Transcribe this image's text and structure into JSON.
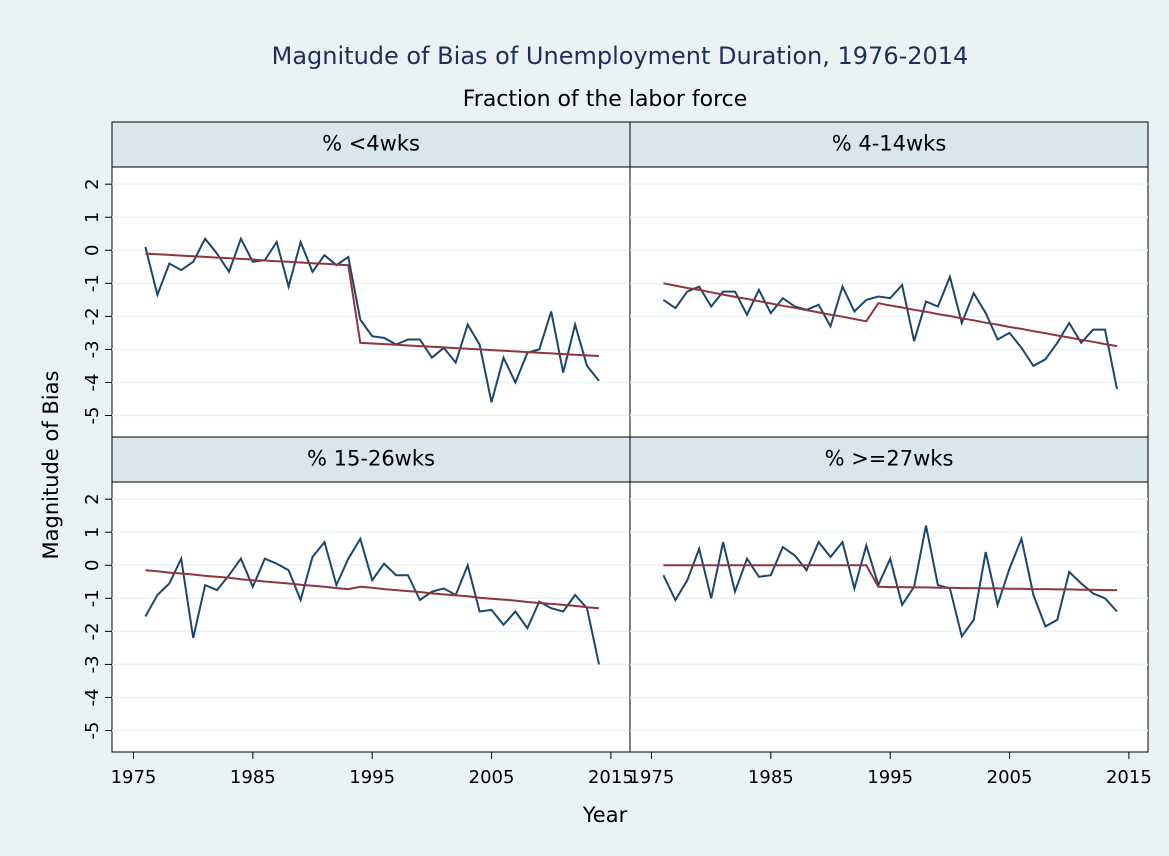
{
  "chart_data": {
    "type": "line",
    "title": "Magnitude of Bias of Unemployment Duration, 1976-2014",
    "subtitle": "Fraction of the labor force",
    "x_label": "Year",
    "y_label": "Magnitude of Bias",
    "xlim": [
      1973.2,
      2016.6
    ],
    "ylim": [
      -5.65,
      2.52
    ],
    "xticks": [
      1975,
      1985,
      1995,
      2005,
      2015
    ],
    "yticks": [
      2,
      1,
      0,
      -1,
      -2,
      -3,
      -4,
      -5
    ],
    "grid": true,
    "x": [
      1976,
      1977,
      1978,
      1979,
      1980,
      1981,
      1982,
      1983,
      1984,
      1985,
      1986,
      1987,
      1988,
      1989,
      1990,
      1991,
      1992,
      1993,
      1994,
      1995,
      1996,
      1997,
      1998,
      1999,
      2000,
      2001,
      2002,
      2003,
      2004,
      2005,
      2006,
      2007,
      2008,
      2009,
      2010,
      2011,
      2012,
      2013,
      2014
    ],
    "panels": [
      {
        "title": "% <4wks",
        "series": [
          {
            "color": "#1a476f",
            "values": [
              0.1,
              -1.35,
              -0.4,
              -0.6,
              -0.35,
              0.35,
              -0.1,
              -0.65,
              0.35,
              -0.35,
              -0.3,
              0.25,
              -1.1,
              0.25,
              -0.65,
              -0.15,
              -0.45,
              -0.2,
              -2.1,
              -2.6,
              -2.65,
              -2.85,
              -2.7,
              -2.7,
              -3.25,
              -2.95,
              -3.4,
              -2.25,
              -2.85,
              -4.6,
              -3.25,
              -4.0,
              -3.1,
              -3.0,
              -1.85,
              -3.7,
              -2.25,
              -3.5,
              -3.95
            ]
          },
          {
            "color": "#90353b",
            "values": [
              -0.1,
              -0.12,
              -0.14,
              -0.16,
              -0.18,
              -0.2,
              -0.22,
              -0.24,
              -0.26,
              -0.28,
              -0.31,
              -0.33,
              -0.35,
              -0.37,
              -0.39,
              -0.41,
              -0.43,
              -0.45,
              -2.8,
              -2.82,
              -2.84,
              -2.86,
              -2.88,
              -2.9,
              -2.92,
              -2.94,
              -2.96,
              -2.98,
              -3.0,
              -3.02,
              -3.04,
              -3.06,
              -3.08,
              -3.1,
              -3.12,
              -3.14,
              -3.16,
              -3.18,
              -3.2
            ]
          }
        ]
      },
      {
        "title": "% 4-14wks",
        "series": [
          {
            "color": "#1a476f",
            "values": [
              -1.5,
              -1.75,
              -1.25,
              -1.1,
              -1.7,
              -1.25,
              -1.25,
              -1.95,
              -1.2,
              -1.9,
              -1.45,
              -1.7,
              -1.8,
              -1.65,
              -2.3,
              -1.1,
              -1.85,
              -1.5,
              -1.4,
              -1.45,
              -1.05,
              -2.75,
              -1.55,
              -1.7,
              -0.8,
              -2.2,
              -1.3,
              -1.9,
              -2.7,
              -2.5,
              -2.95,
              -3.5,
              -3.3,
              -2.8,
              -2.2,
              -2.8,
              -2.4,
              -2.4,
              -4.2
            ]
          },
          {
            "color": "#90353b",
            "values": [
              -1.0,
              -1.07,
              -1.14,
              -1.2,
              -1.27,
              -1.34,
              -1.41,
              -1.47,
              -1.54,
              -1.61,
              -1.68,
              -1.74,
              -1.81,
              -1.88,
              -1.95,
              -2.01,
              -2.08,
              -2.15,
              -1.6,
              -1.67,
              -1.73,
              -1.8,
              -1.86,
              -1.93,
              -1.99,
              -2.06,
              -2.12,
              -2.19,
              -2.25,
              -2.32,
              -2.38,
              -2.45,
              -2.51,
              -2.58,
              -2.64,
              -2.71,
              -2.77,
              -2.84,
              -2.9
            ]
          }
        ]
      },
      {
        "title": "% 15-26wks",
        "series": [
          {
            "color": "#1a476f",
            "values": [
              -1.55,
              -0.9,
              -0.55,
              0.2,
              -2.2,
              -0.6,
              -0.75,
              -0.3,
              0.2,
              -0.65,
              0.2,
              0.05,
              -0.15,
              -1.05,
              0.25,
              0.7,
              -0.6,
              0.2,
              0.8,
              -0.45,
              0.05,
              -0.3,
              -0.3,
              -1.05,
              -0.8,
              -0.7,
              -0.9,
              0.0,
              -1.4,
              -1.35,
              -1.8,
              -1.4,
              -1.9,
              -1.1,
              -1.3,
              -1.4,
              -0.9,
              -1.3,
              -3.0
            ]
          },
          {
            "color": "#90353b",
            "values": [
              -0.15,
              -0.18,
              -0.22,
              -0.25,
              -0.28,
              -0.32,
              -0.35,
              -0.38,
              -0.42,
              -0.45,
              -0.49,
              -0.52,
              -0.55,
              -0.59,
              -0.62,
              -0.65,
              -0.69,
              -0.72,
              -0.65,
              -0.68,
              -0.72,
              -0.75,
              -0.78,
              -0.81,
              -0.85,
              -0.88,
              -0.91,
              -0.94,
              -0.98,
              -1.01,
              -1.04,
              -1.07,
              -1.11,
              -1.14,
              -1.17,
              -1.2,
              -1.23,
              -1.27,
              -1.3
            ]
          }
        ]
      },
      {
        "title": "% >=27wks",
        "series": [
          {
            "color": "#1a476f",
            "values": [
              -0.3,
              -1.05,
              -0.45,
              0.5,
              -1.0,
              0.7,
              -0.8,
              0.2,
              -0.35,
              -0.3,
              0.55,
              0.3,
              -0.15,
              0.7,
              0.25,
              0.7,
              -0.7,
              0.6,
              -0.6,
              0.2,
              -1.2,
              -0.65,
              1.2,
              -0.6,
              -0.7,
              -2.15,
              -1.65,
              0.4,
              -1.2,
              -0.1,
              0.8,
              -0.9,
              -1.85,
              -1.65,
              -0.2,
              -0.55,
              -0.85,
              -1.0,
              -1.4
            ]
          },
          {
            "color": "#90353b",
            "values": [
              0,
              0,
              0,
              0,
              0,
              0,
              0,
              0,
              0,
              0,
              0,
              0,
              0,
              0,
              0,
              0,
              0,
              0,
              -0.65,
              -0.66,
              -0.66,
              -0.67,
              -0.67,
              -0.68,
              -0.68,
              -0.69,
              -0.69,
              -0.7,
              -0.7,
              -0.71,
              -0.71,
              -0.72,
              -0.72,
              -0.73,
              -0.73,
              -0.74,
              -0.74,
              -0.75,
              -0.75
            ]
          }
        ]
      }
    ]
  }
}
